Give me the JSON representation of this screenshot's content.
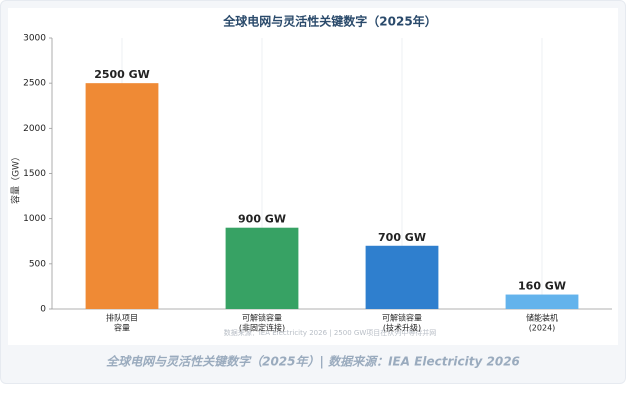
{
  "chart_data": {
    "type": "bar",
    "title": "全球电网与灵活性关键数字（2025年）",
    "ylabel": "容量（GW）",
    "categories": [
      [
        "排队项目",
        "容量"
      ],
      [
        "可解锁容量",
        "(非固定连接)"
      ],
      [
        "可解锁容量",
        "(技术升级)"
      ],
      [
        "储能装机",
        "(2024)"
      ]
    ],
    "values": [
      2500,
      900,
      700,
      160
    ],
    "value_labels": [
      "2500 GW",
      "900 GW",
      "700 GW",
      "160 GW"
    ],
    "colors": [
      "#ef8a35",
      "#37a264",
      "#2f7fce",
      "#63b3ec"
    ],
    "ylim": [
      0,
      3000
    ],
    "yticks": [
      0,
      500,
      1000,
      1500,
      2000,
      2500,
      3000
    ],
    "grid": true,
    "source_note": "数据来源：IEA Electricity 2026 | 2500 GW项目在队列中等待并网"
  },
  "caption": "全球电网与灵活性关键数字（2025年）| 数据来源：IEA Electricity 2026"
}
